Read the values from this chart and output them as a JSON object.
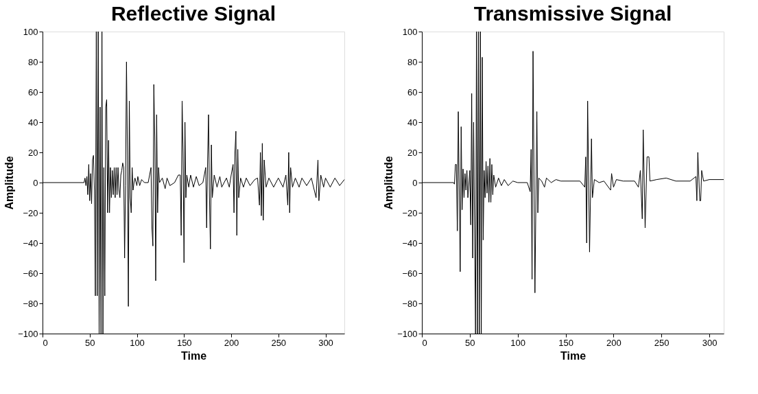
{
  "chart_data": [
    {
      "type": "line",
      "title": "Reflective Signal",
      "xlabel": "Time",
      "ylabel": "Amplitude",
      "xlim": [
        0,
        320
      ],
      "xticks": [
        0,
        50,
        100,
        150,
        200,
        250,
        300
      ],
      "ylim": [
        -100,
        100
      ],
      "yticks": [
        -100,
        -80,
        -60,
        -40,
        -20,
        0,
        20,
        40,
        60,
        80,
        100
      ],
      "grid": false,
      "marker": "none",
      "line_style": "solid",
      "series": [
        {
          "color": "#000000",
          "x": [
            0,
            44,
            45,
            46,
            47,
            48,
            49,
            50,
            51,
            52,
            53,
            54,
            55,
            56,
            57,
            58,
            59,
            60,
            61,
            62,
            63,
            64,
            65,
            66,
            67,
            68,
            69,
            70,
            71,
            72,
            73,
            74,
            75,
            76,
            77,
            78,
            79,
            80,
            81,
            82,
            83,
            84,
            85,
            86,
            87,
            88,
            89,
            90,
            91,
            92,
            93,
            94,
            95,
            96,
            97,
            98,
            100,
            101,
            103,
            105,
            108,
            112,
            115,
            116,
            117,
            118,
            119,
            120,
            121,
            122,
            123,
            124,
            127,
            130,
            132,
            135,
            140,
            144,
            146,
            147,
            148,
            149,
            150,
            151,
            152,
            153,
            155,
            157,
            160,
            163,
            166,
            170,
            173,
            174,
            175,
            176,
            177,
            178,
            179,
            180,
            182,
            185,
            188,
            190,
            195,
            198,
            200,
            202,
            203,
            204,
            205,
            206,
            207,
            208,
            210,
            213,
            216,
            220,
            225,
            228,
            230,
            231,
            232,
            233,
            234,
            235,
            237,
            240,
            245,
            250,
            255,
            258,
            260,
            261,
            262,
            263,
            265,
            268,
            272,
            275,
            280,
            285,
            290,
            292,
            293,
            295,
            298,
            300,
            305,
            310,
            315,
            320
          ],
          "values": [
            0,
            0,
            3,
            -2,
            4,
            -8,
            12,
            -12,
            6,
            -14,
            15,
            18,
            -5,
            -75,
            100,
            -75,
            100,
            -100,
            50,
            -100,
            100,
            -100,
            10,
            -75,
            50,
            55,
            -20,
            28,
            -20,
            10,
            -10,
            8,
            -8,
            10,
            -10,
            10,
            -8,
            10,
            -5,
            -10,
            5,
            8,
            13,
            10,
            -50,
            -2,
            80,
            20,
            -82,
            54,
            -10,
            -20,
            10,
            -5,
            0,
            3,
            -2,
            4,
            -2,
            2,
            0,
            0,
            10,
            -30,
            -42,
            65,
            30,
            -65,
            45,
            -20,
            10,
            0,
            3,
            -4,
            3,
            -2,
            0,
            5,
            5,
            -35,
            54,
            20,
            -53,
            40,
            -10,
            5,
            -3,
            5,
            -3,
            4,
            -2,
            0,
            10,
            -30,
            15,
            45,
            -10,
            -44,
            25,
            -10,
            5,
            -3,
            4,
            -3,
            3,
            -3,
            5,
            12,
            -20,
            20,
            34,
            -35,
            22,
            -10,
            3,
            -3,
            3,
            -2,
            2,
            3,
            -15,
            20,
            -22,
            26,
            -25,
            15,
            -3,
            3,
            -3,
            3,
            -3,
            5,
            -15,
            20,
            -20,
            10,
            -3,
            3,
            -3,
            3,
            -2,
            3,
            -10,
            15,
            -12,
            5,
            -3,
            3,
            -3,
            3,
            -2,
            2
          ]
        }
      ]
    },
    {
      "type": "line",
      "title": "Transmissive Signal",
      "xlabel": "Time",
      "ylabel": "Amplitude",
      "xlim": [
        0,
        315
      ],
      "xticks": [
        0,
        50,
        100,
        150,
        200,
        250,
        300
      ],
      "ylim": [
        -100,
        100
      ],
      "yticks": [
        -100,
        -80,
        -60,
        -40,
        -20,
        0,
        20,
        40,
        60,
        80,
        100
      ],
      "grid": false,
      "marker": "none",
      "line_style": "solid",
      "series": [
        {
          "color": "#000000",
          "x": [
            0,
            33,
            34,
            35,
            36,
            37,
            38,
            39,
            40,
            41,
            42,
            43,
            44,
            45,
            46,
            47,
            48,
            50,
            51,
            52,
            53,
            54,
            56,
            57,
            58,
            59,
            60,
            61,
            62,
            63,
            64,
            65,
            66,
            67,
            68,
            69,
            70,
            71,
            72,
            73,
            74,
            75,
            77,
            80,
            83,
            86,
            90,
            95,
            100,
            110,
            113,
            114,
            115,
            116,
            118,
            120,
            121,
            122,
            125,
            128,
            130,
            135,
            140,
            145,
            165,
            170,
            171,
            172,
            173,
            175,
            177,
            178,
            180,
            185,
            190,
            197,
            198,
            200,
            203,
            210,
            222,
            226,
            228,
            230,
            231,
            233,
            235,
            237,
            238,
            245,
            255,
            265,
            280,
            286,
            287,
            288,
            290,
            291,
            292,
            294,
            300,
            315
          ],
          "values": [
            0,
            0,
            -1,
            12,
            12,
            -32,
            47,
            -5,
            -59,
            37,
            -18,
            9,
            -10,
            6,
            -5,
            8,
            -10,
            8,
            -28,
            59,
            -50,
            40,
            -100,
            100,
            -100,
            100,
            -100,
            100,
            -100,
            83,
            -38,
            8,
            -10,
            14,
            -7,
            11,
            -13,
            16,
            -13,
            12,
            -8,
            5,
            -3,
            3,
            -2,
            2,
            -2,
            1,
            0,
            0,
            -6,
            22,
            -64,
            87,
            -73,
            47,
            -20,
            3,
            1,
            -3,
            3,
            0,
            2,
            1,
            1,
            -3,
            17,
            -40,
            54,
            -46,
            29,
            -10,
            2,
            0,
            1,
            -5,
            6,
            -3,
            2,
            1,
            1,
            -3,
            8,
            -24,
            35,
            -30,
            17,
            17,
            1,
            2,
            3,
            1,
            1,
            4,
            -12,
            20,
            -12,
            -12,
            8,
            1,
            2,
            2
          ]
        }
      ]
    }
  ]
}
